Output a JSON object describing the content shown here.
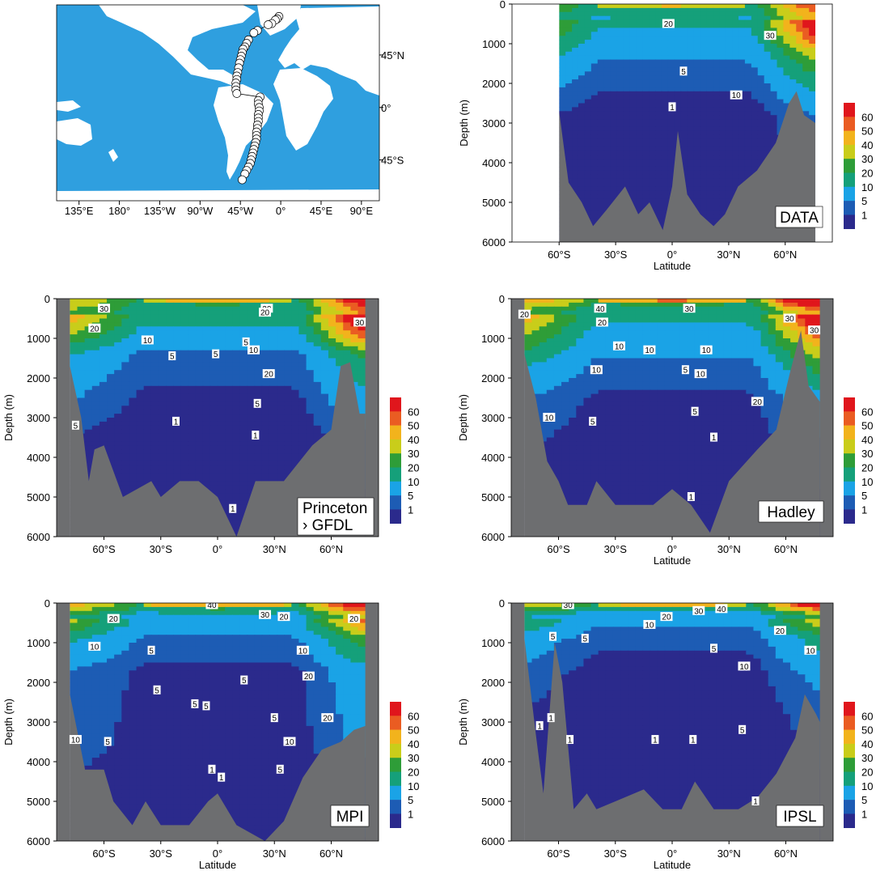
{
  "figure": {
    "palette": {
      "1": "#2b2a8c",
      "5": "#1d5cb4",
      "10": "#1aa3e6",
      "20": "#15a07a",
      "30": "#2e9d38",
      "40": "#c9cd1a",
      "50": "#f2b31c",
      "60": "#ea5c22",
      "70": "#e0161c",
      "ocean": "#2f9fdf",
      "land": "#ffffff",
      "topo": "#6d6e70"
    },
    "map": {
      "xticks": [
        "135°E",
        "180°",
        "135°W",
        "90°W",
        "45°W",
        "0°",
        "45°E",
        "90°E"
      ],
      "xtick_values": [
        135,
        180,
        225,
        270,
        315,
        360,
        405,
        450
      ],
      "yticks": [
        "45°N",
        "0°",
        "45°S"
      ],
      "ytick_values": [
        45,
        0,
        -45
      ],
      "lon_range": [
        110,
        470
      ],
      "lat_range": [
        -80,
        88
      ],
      "stations": [
        [
          358,
          78
        ],
        [
          356,
          76
        ],
        [
          354,
          75
        ],
        [
          350,
          72
        ],
        [
          346,
          71
        ],
        [
          334,
          66
        ],
        [
          330,
          64
        ],
        [
          324,
          58
        ],
        [
          322,
          55
        ],
        [
          320,
          52
        ],
        [
          318,
          50
        ],
        [
          317,
          47
        ],
        [
          316,
          44
        ],
        [
          315,
          41
        ],
        [
          314,
          38
        ],
        [
          313,
          34
        ],
        [
          312,
          30
        ],
        [
          311,
          27
        ],
        [
          311,
          24
        ],
        [
          310,
          21
        ],
        [
          310,
          18
        ],
        [
          310,
          15
        ],
        [
          311,
          12
        ],
        [
          337,
          9
        ],
        [
          335,
          6
        ],
        [
          335,
          3
        ],
        [
          336,
          0
        ],
        [
          336,
          -3
        ],
        [
          335,
          -6
        ],
        [
          335,
          -9
        ],
        [
          335,
          -12
        ],
        [
          334,
          -15
        ],
        [
          334,
          -18
        ],
        [
          333,
          -21
        ],
        [
          333,
          -24
        ],
        [
          333,
          -27
        ],
        [
          332,
          -30
        ],
        [
          331,
          -33
        ],
        [
          330,
          -36
        ],
        [
          329,
          -39
        ],
        [
          328,
          -42
        ],
        [
          327,
          -45
        ],
        [
          326,
          -48
        ],
        [
          324,
          -51
        ],
        [
          322,
          -54
        ],
        [
          320,
          -57
        ],
        [
          317,
          -62
        ]
      ]
    },
    "colorbar_labels": [
      "60",
      "50",
      "40",
      "30",
      "20",
      "10",
      "5",
      "1"
    ],
    "panels": [
      {
        "id": "data",
        "label": "DATA",
        "y_ticks": [
          "0",
          "1000",
          "2000",
          "3000",
          "4000",
          "5000",
          "6000"
        ],
        "x_ticks": [
          "60°S",
          "30°S",
          "0°",
          "30°N",
          "60°N"
        ],
        "ylabel": "Depth (m)",
        "xlabel": "Latitude",
        "domain": [
          -60,
          76
        ],
        "levels": [
          {
            "d": 50,
            "l": 28
          },
          {
            "d": 200,
            "l": 24
          },
          {
            "d": 700,
            "l": 19
          },
          {
            "d": 1300,
            "l": 11
          },
          {
            "d": 2000,
            "l": 6
          },
          {
            "d": 2800,
            "l": 2.5
          },
          {
            "d": 3500,
            "l": 2
          },
          {
            "d": 4500,
            "l": 1.5
          },
          {
            "d": 5500,
            "l": 1.2
          }
        ],
        "topo": [
          [
            -60,
            2700
          ],
          [
            -55,
            4500
          ],
          [
            -48,
            5000
          ],
          [
            -42,
            5600
          ],
          [
            -35,
            5200
          ],
          [
            -25,
            4600
          ],
          [
            -18,
            5300
          ],
          [
            -12,
            5000
          ],
          [
            -5,
            5700
          ],
          [
            0,
            4600
          ],
          [
            3,
            3200
          ],
          [
            8,
            4800
          ],
          [
            15,
            5300
          ],
          [
            22,
            5600
          ],
          [
            28,
            5300
          ],
          [
            35,
            4600
          ],
          [
            45,
            4200
          ],
          [
            55,
            3500
          ],
          [
            62,
            2500
          ],
          [
            66,
            2200
          ],
          [
            70,
            2800
          ],
          [
            76,
            3000
          ]
        ]
      },
      {
        "id": "gfdl",
        "label": "Princeton › GFDL",
        "label_lines": [
          "Princeton",
          "› GFDL"
        ],
        "y_ticks": [
          "0",
          "1000",
          "2000",
          "3000",
          "4000",
          "5000",
          "6000"
        ],
        "x_ticks": [
          "60°S",
          "30°S",
          "0°",
          "30°N",
          "60°N"
        ],
        "ylabel": "Depth (m)",
        "xlabel": "",
        "domain": [
          -78,
          78
        ],
        "levels": [
          {
            "d": 50,
            "l": 32
          },
          {
            "d": 300,
            "l": 25
          },
          {
            "d": 800,
            "l": 18
          },
          {
            "d": 1400,
            "l": 8
          },
          {
            "d": 2200,
            "l": 5
          },
          {
            "d": 3000,
            "l": 3
          },
          {
            "d": 3800,
            "l": 1.5
          },
          {
            "d": 5000,
            "l": 1.2
          },
          {
            "d": 6000,
            "l": 1.1
          }
        ],
        "topo": [
          [
            -78,
            1700
          ],
          [
            -72,
            3000
          ],
          [
            -68,
            4600
          ],
          [
            -65,
            3800
          ],
          [
            -60,
            3700
          ],
          [
            -50,
            5000
          ],
          [
            -35,
            4600
          ],
          [
            -30,
            5000
          ],
          [
            -20,
            4600
          ],
          [
            -10,
            4600
          ],
          [
            0,
            5000
          ],
          [
            10,
            6000
          ],
          [
            20,
            4600
          ],
          [
            35,
            4600
          ],
          [
            50,
            3700
          ],
          [
            60,
            3300
          ],
          [
            65,
            1700
          ],
          [
            70,
            1600
          ],
          [
            75,
            2900
          ],
          [
            78,
            2900
          ]
        ]
      },
      {
        "id": "hadley",
        "label": "Hadley",
        "y_ticks": [
          "0",
          "1000",
          "2000",
          "3000",
          "4000",
          "5000",
          "6000"
        ],
        "x_ticks": [
          "60°S",
          "30°S",
          "0°",
          "30°N",
          "60°N"
        ],
        "ylabel": "Depth (m)",
        "xlabel": "Latitude",
        "domain": [
          -78,
          78
        ],
        "levels": [
          {
            "d": 50,
            "l": 38
          },
          {
            "d": 300,
            "l": 24
          },
          {
            "d": 900,
            "l": 16
          },
          {
            "d": 1600,
            "l": 9
          },
          {
            "d": 2500,
            "l": 4
          },
          {
            "d": 3500,
            "l": 2.5
          },
          {
            "d": 4200,
            "l": 1.5
          },
          {
            "d": 5200,
            "l": 1.1
          },
          {
            "d": 6000,
            "l": 1
          }
        ],
        "topo": [
          [
            -78,
            1400
          ],
          [
            -72,
            2500
          ],
          [
            -66,
            4100
          ],
          [
            -60,
            4600
          ],
          [
            -55,
            5200
          ],
          [
            -45,
            5200
          ],
          [
            -40,
            4600
          ],
          [
            -30,
            5200
          ],
          [
            -10,
            5200
          ],
          [
            0,
            4800
          ],
          [
            10,
            5200
          ],
          [
            20,
            5900
          ],
          [
            30,
            4600
          ],
          [
            45,
            3800
          ],
          [
            55,
            3300
          ],
          [
            62,
            1900
          ],
          [
            68,
            800
          ],
          [
            72,
            2200
          ],
          [
            78,
            2600
          ]
        ]
      },
      {
        "id": "mpi",
        "label": "MPI",
        "y_ticks": [
          "0",
          "1000",
          "2000",
          "3000",
          "4000",
          "5000",
          "6000"
        ],
        "x_ticks": [
          "60°S",
          "30°S",
          "0°",
          "30°N",
          "60°N"
        ],
        "ylabel": "Depth (m)",
        "xlabel": "Latitude",
        "domain": [
          -78,
          78
        ],
        "levels": [
          {
            "d": 50,
            "l": 34
          },
          {
            "d": 300,
            "l": 19
          },
          {
            "d": 900,
            "l": 9
          },
          {
            "d": 1700,
            "l": 4
          },
          {
            "d": 2600,
            "l": 3.5
          },
          {
            "d": 3600,
            "l": 3
          },
          {
            "d": 4300,
            "l": 2
          },
          {
            "d": 5200,
            "l": 1.5
          },
          {
            "d": 6000,
            "l": 1.2
          }
        ],
        "topo": [
          [
            -78,
            2300
          ],
          [
            -70,
            4200
          ],
          [
            -60,
            4200
          ],
          [
            -55,
            5000
          ],
          [
            -45,
            5600
          ],
          [
            -38,
            5000
          ],
          [
            -30,
            5600
          ],
          [
            -15,
            5600
          ],
          [
            -5,
            5000
          ],
          [
            0,
            4800
          ],
          [
            10,
            5600
          ],
          [
            25,
            6000
          ],
          [
            35,
            5500
          ],
          [
            45,
            4400
          ],
          [
            55,
            3700
          ],
          [
            65,
            3500
          ],
          [
            72,
            3200
          ],
          [
            78,
            3100
          ]
        ]
      },
      {
        "id": "ipsl",
        "label": "IPSL",
        "y_ticks": [
          "0",
          "1000",
          "2000",
          "3000",
          "4000",
          "5000",
          "6000"
        ],
        "x_ticks": [
          "60°S",
          "30°S",
          "0°",
          "30°N",
          "60°N"
        ],
        "ylabel": "Depth (m)",
        "xlabel": "Latitude",
        "domain": [
          -78,
          78
        ],
        "levels": [
          {
            "d": 50,
            "l": 32
          },
          {
            "d": 300,
            "l": 14
          },
          {
            "d": 900,
            "l": 6
          },
          {
            "d": 1800,
            "l": 3
          },
          {
            "d": 2700,
            "l": 2
          },
          {
            "d": 3600,
            "l": 1.5
          },
          {
            "d": 4500,
            "l": 1.1
          },
          {
            "d": 5500,
            "l": 1
          },
          {
            "d": 6000,
            "l": 1
          }
        ],
        "topo": [
          [
            -78,
            900
          ],
          [
            -72,
            3300
          ],
          [
            -68,
            4800
          ],
          [
            -62,
            1000
          ],
          [
            -58,
            2000
          ],
          [
            -52,
            5200
          ],
          [
            -45,
            4800
          ],
          [
            -40,
            5200
          ],
          [
            -30,
            5000
          ],
          [
            -15,
            4700
          ],
          [
            -5,
            5200
          ],
          [
            5,
            5200
          ],
          [
            12,
            4500
          ],
          [
            22,
            5200
          ],
          [
            35,
            5200
          ],
          [
            45,
            4900
          ],
          [
            55,
            4300
          ],
          [
            65,
            3400
          ],
          [
            70,
            2300
          ],
          [
            76,
            2800
          ],
          [
            78,
            3000
          ]
        ]
      }
    ]
  },
  "chart_data": [
    {
      "type": "scatter",
      "title": "",
      "description_of_axes": "map",
      "xticks": [
        "135°E",
        "180°",
        "135°W",
        "90°W",
        "45°W",
        "0°",
        "45°E",
        "90°E"
      ],
      "yticks": [
        "45°N",
        "0°",
        "45°S"
      ],
      "x": [
        358,
        356,
        354,
        350,
        346,
        334,
        330,
        324,
        322,
        320,
        318,
        317,
        316,
        315,
        314,
        313,
        312,
        311,
        311,
        310,
        310,
        310,
        311,
        337,
        335,
        335,
        336,
        336,
        335,
        335,
        335,
        334,
        334,
        333,
        333,
        333,
        332,
        331,
        330,
        329,
        328,
        327,
        326,
        324,
        322,
        320,
        317
      ],
      "y": [
        78,
        76,
        75,
        72,
        71,
        66,
        64,
        58,
        55,
        52,
        50,
        47,
        44,
        41,
        38,
        34,
        30,
        27,
        24,
        21,
        18,
        15,
        12,
        9,
        6,
        3,
        0,
        -3,
        -6,
        -9,
        -12,
        -15,
        -18,
        -21,
        -24,
        -27,
        -30,
        -33,
        -36,
        -39,
        -42,
        -45,
        -48,
        -51,
        -54,
        -57,
        -62
      ]
    },
    {
      "type": "heatmap",
      "panels": [
        "DATA",
        "Princeton › GFDL",
        "Hadley",
        "MPI",
        "IPSL"
      ],
      "xlabel": "Latitude",
      "ylabel": "Depth (m)",
      "x_ticks": [
        "60°S",
        "30°S",
        "0°",
        "30°N",
        "60°N"
      ],
      "y_ticks": [
        "0",
        "1000",
        "2000",
        "3000",
        "4000",
        "5000",
        "6000"
      ],
      "ylim": [
        6000,
        0
      ],
      "colorbar_levels": [
        1,
        5,
        10,
        20,
        30,
        40,
        50,
        60
      ],
      "contour_labels": {
        "DATA": [
          "20",
          "30",
          "5",
          "10",
          "1"
        ],
        "Princeton › GFDL": [
          "30",
          "30",
          "20",
          "20",
          "10",
          "5",
          "5",
          "5",
          "10",
          "20",
          "5",
          "5",
          "1",
          "1",
          "1",
          "30"
        ],
        "Hadley": [
          "20",
          "40",
          "30",
          "20",
          "20",
          "10",
          "10",
          "10",
          "5",
          "10",
          "5",
          "10",
          "5",
          "1",
          "1",
          "20",
          "30",
          "30"
        ],
        "MPI": [
          "20",
          "40",
          "30",
          "20",
          "10",
          "5",
          "5",
          "5",
          "5",
          "5",
          "10",
          "20",
          "5",
          "1",
          "1",
          "5",
          "10",
          "10",
          "20",
          "5",
          "20"
        ],
        "IPSL": [
          "30",
          "30",
          "40",
          "20",
          "10",
          "5",
          "5",
          "5",
          "10",
          "5",
          "1",
          "1",
          "1",
          "1",
          "1",
          "1",
          "10",
          "20"
        ]
      }
    }
  ]
}
